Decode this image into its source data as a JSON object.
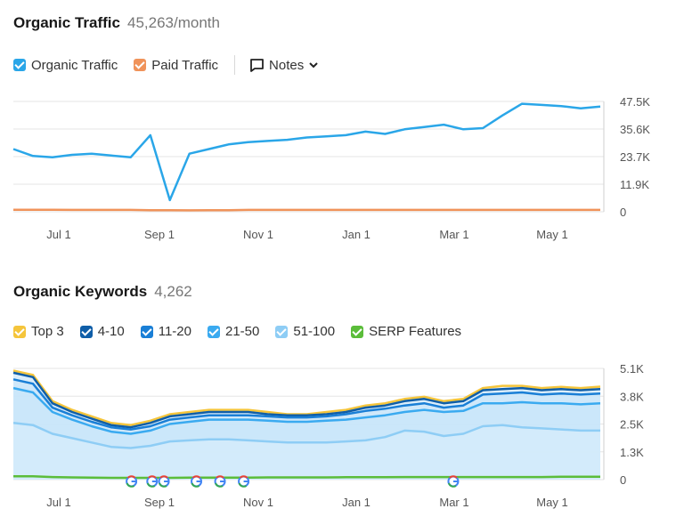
{
  "traffic": {
    "title": "Organic Traffic",
    "value": "45,263/month",
    "legend": [
      {
        "label": "Organic Traffic",
        "color": "#2aa6e8"
      },
      {
        "label": "Paid Traffic",
        "color": "#f0935a"
      }
    ],
    "notes_label": "Notes"
  },
  "keywords": {
    "title": "Organic Keywords",
    "value": "4,262",
    "legend": [
      {
        "label": "Top 3",
        "color": "#f5c53b"
      },
      {
        "label": "4-10",
        "color": "#0f5ea8"
      },
      {
        "label": "11-20",
        "color": "#1a7fd6"
      },
      {
        "label": "21-50",
        "color": "#3aaaf0"
      },
      {
        "label": "51-100",
        "color": "#8ecdf5"
      },
      {
        "label": "SERP Features",
        "color": "#5bbd3a"
      }
    ]
  },
  "chart_data": [
    {
      "type": "line",
      "x_ticks": [
        "Jul 1",
        "Sep 1",
        "Nov 1",
        "Jan 1",
        "Mar 1",
        "May 1"
      ],
      "y_ticks": [
        "47.5K",
        "35.6K",
        "23.7K",
        "11.9K",
        "0"
      ],
      "ylim": [
        0,
        47500
      ],
      "grid": true,
      "series": [
        {
          "name": "Organic Traffic",
          "color": "#2aa6e8",
          "values": [
            27000,
            24000,
            23500,
            24500,
            25000,
            24200,
            23500,
            33000,
            5000,
            25000,
            27000,
            29000,
            30000,
            30500,
            31000,
            32000,
            32500,
            33000,
            34500,
            33500,
            35500,
            36500,
            37500,
            35500,
            36000,
            41500,
            46500,
            46000,
            45500,
            44500,
            45263
          ]
        },
        {
          "name": "Paid Traffic",
          "color": "#f0935a",
          "values": [
            900,
            900,
            900,
            800,
            800,
            800,
            800,
            700,
            700,
            600,
            700,
            700,
            800,
            800,
            800,
            800,
            800,
            800,
            800,
            800,
            800,
            800,
            800,
            800,
            800,
            800,
            800,
            800,
            800,
            800,
            800
          ]
        }
      ]
    },
    {
      "type": "area",
      "x_ticks": [
        "Jul 1",
        "Sep 1",
        "Nov 1",
        "Jan 1",
        "Mar 1",
        "May 1"
      ],
      "y_ticks": [
        "5.1K",
        "3.8K",
        "2.5K",
        "1.3K",
        "0"
      ],
      "ylim": [
        0,
        5100
      ],
      "grid": true,
      "serp_feature_markers": [
        0.2,
        0.235,
        0.255,
        0.31,
        0.35,
        0.39,
        0.745
      ],
      "series": [
        {
          "name": "Top 3",
          "color": "#f5c53b",
          "values": [
            5000,
            4800,
            3600,
            3200,
            2900,
            2600,
            2500,
            2700,
            3000,
            3100,
            3200,
            3200,
            3200,
            3100,
            3000,
            3000,
            3100,
            3200,
            3400,
            3500,
            3700,
            3800,
            3600,
            3700,
            4200,
            4300,
            4300,
            4200,
            4250,
            4200,
            4262
          ]
        },
        {
          "name": "4-10",
          "color": "#0f5ea8",
          "values": [
            4900,
            4700,
            3500,
            3100,
            2800,
            2500,
            2400,
            2600,
            2900,
            3000,
            3100,
            3100,
            3100,
            3000,
            2950,
            2950,
            3000,
            3100,
            3300,
            3400,
            3600,
            3700,
            3500,
            3600,
            4100,
            4150,
            4200,
            4100,
            4150,
            4100,
            4150
          ]
        },
        {
          "name": "11-20",
          "color": "#1a7fd6",
          "values": [
            4600,
            4400,
            3300,
            2950,
            2650,
            2400,
            2300,
            2450,
            2750,
            2850,
            2950,
            2950,
            2950,
            2900,
            2850,
            2850,
            2900,
            3000,
            3150,
            3250,
            3400,
            3500,
            3300,
            3400,
            3900,
            3950,
            4000,
            3900,
            3950,
            3900,
            3950
          ]
        },
        {
          "name": "21-50",
          "color": "#3aaaf0",
          "values": [
            4200,
            4000,
            3100,
            2750,
            2450,
            2200,
            2100,
            2250,
            2550,
            2650,
            2750,
            2750,
            2750,
            2700,
            2650,
            2650,
            2700,
            2750,
            2850,
            2950,
            3100,
            3200,
            3100,
            3150,
            3500,
            3500,
            3550,
            3500,
            3500,
            3450,
            3500
          ]
        },
        {
          "name": "51-100",
          "color": "#8ecdf5",
          "values": [
            2600,
            2500,
            2100,
            1900,
            1700,
            1500,
            1450,
            1550,
            1750,
            1800,
            1850,
            1850,
            1800,
            1750,
            1700,
            1700,
            1700,
            1750,
            1800,
            1950,
            2250,
            2200,
            2000,
            2100,
            2450,
            2500,
            2400,
            2350,
            2300,
            2250,
            2250
          ]
        },
        {
          "name": "SERP Features",
          "color": "#5bbd3a",
          "values": [
            150,
            150,
            120,
            100,
            90,
            80,
            80,
            80,
            80,
            90,
            90,
            90,
            90,
            100,
            100,
            100,
            100,
            110,
            110,
            110,
            120,
            120,
            120,
            120,
            120,
            120,
            120,
            120,
            130,
            130,
            130
          ]
        }
      ]
    }
  ]
}
